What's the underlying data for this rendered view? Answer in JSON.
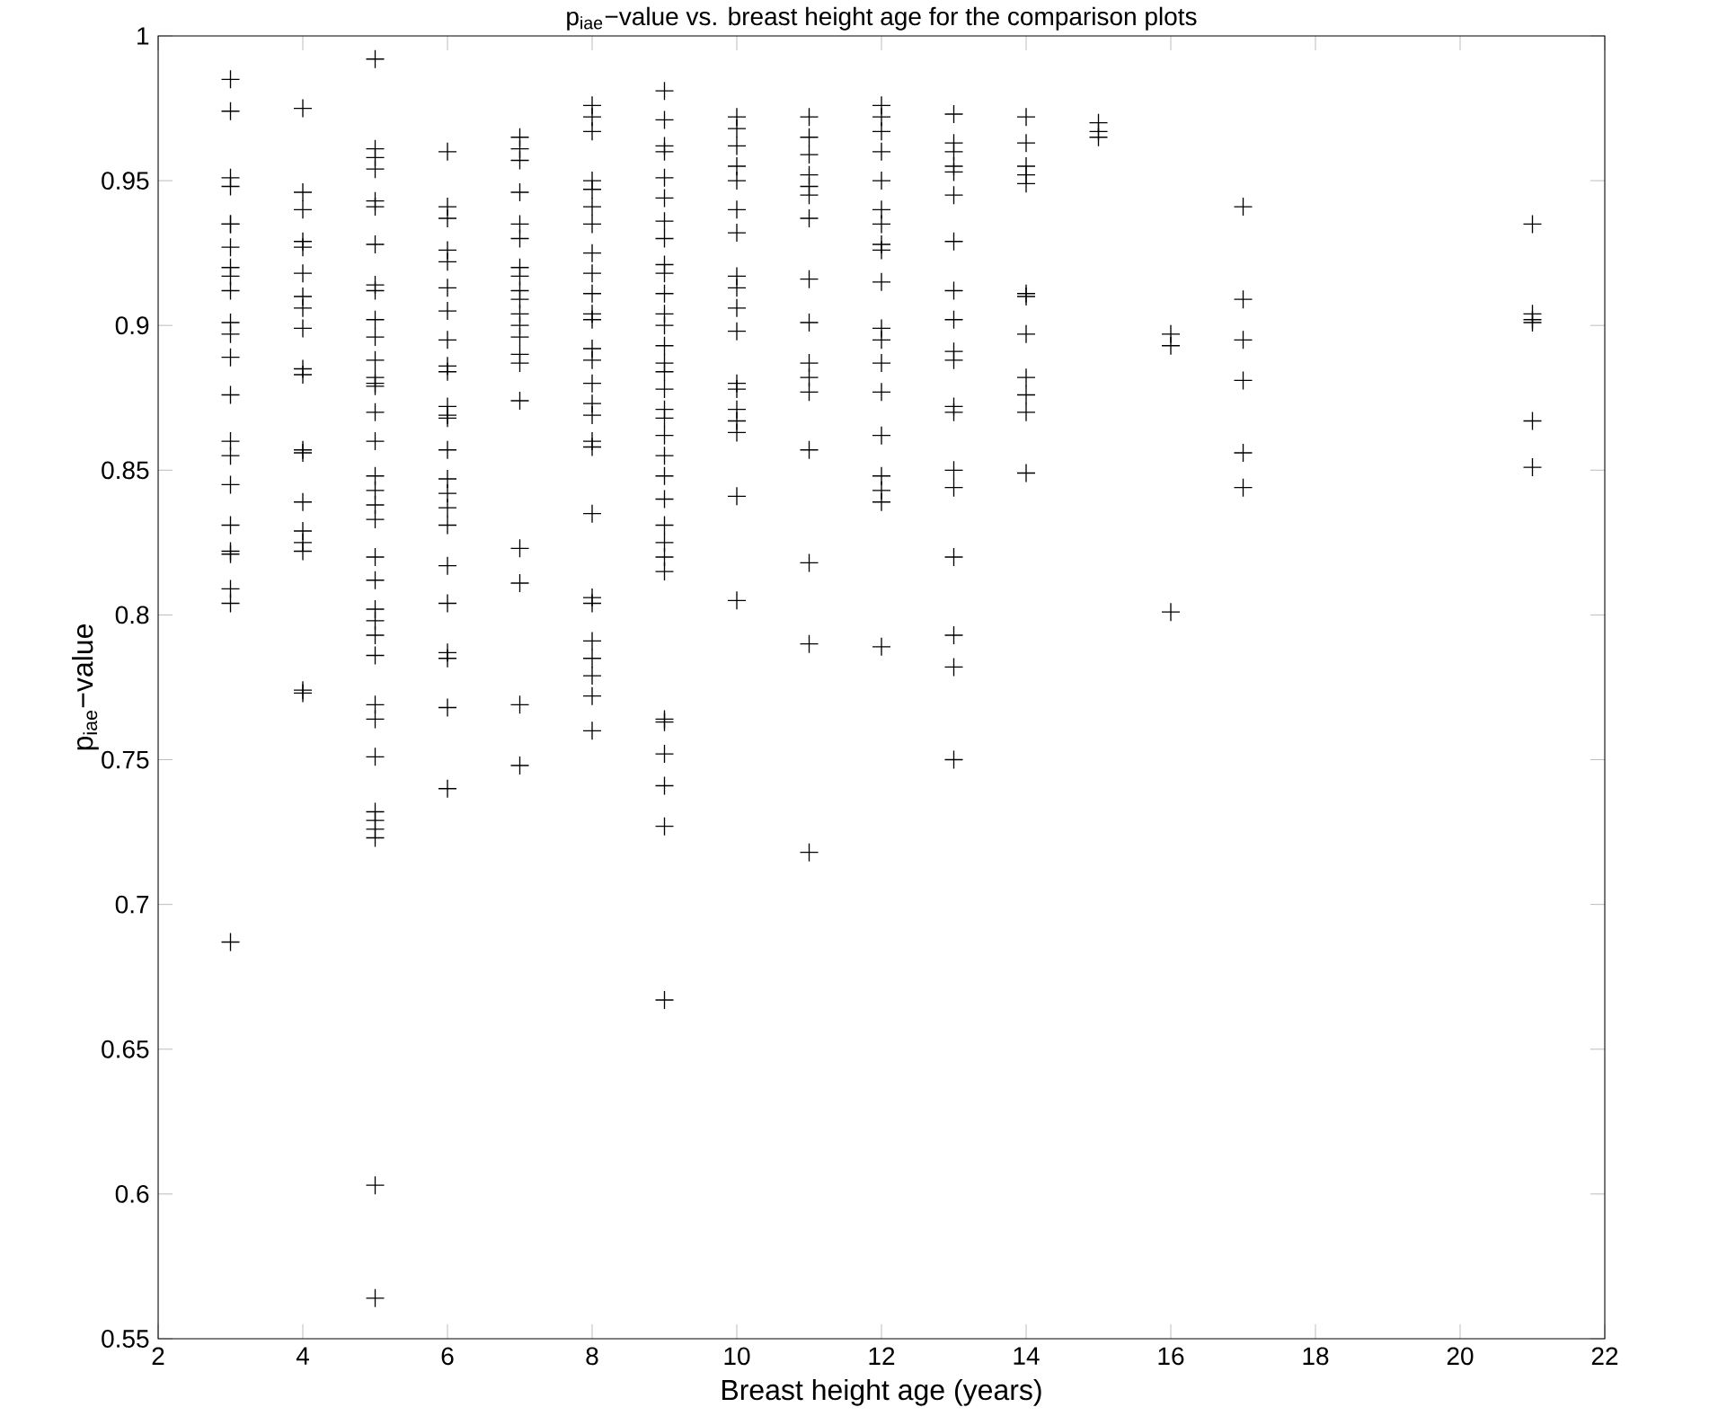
{
  "chart_data": {
    "type": "scatter",
    "title": "p$_{iae}$−value vs. breast height age for the comparison plots",
    "xlabel": "Breast height age (years)",
    "ylabel": "p$_{iae}$−value",
    "xlim": [
      2,
      22
    ],
    "ylim": [
      0.55,
      1
    ],
    "xticks": [
      2,
      4,
      6,
      8,
      10,
      12,
      14,
      16,
      18,
      20,
      22
    ],
    "yticks": [
      0.55,
      0.6,
      0.65,
      0.7,
      0.75,
      0.8,
      0.85,
      0.9,
      0.95,
      1
    ],
    "grid": false,
    "marker": "cross",
    "series": [
      {
        "color": "#000000",
        "x": [
          3,
          3,
          3,
          3,
          3,
          3,
          3,
          3,
          3,
          3,
          3,
          3,
          3,
          3,
          3,
          3,
          3,
          3,
          3,
          3,
          3,
          3,
          3,
          4,
          4,
          4,
          4,
          4,
          4,
          4,
          4,
          4,
          4,
          4,
          4,
          4,
          4,
          4,
          4,
          4,
          4,
          4,
          5,
          5,
          5,
          5,
          5,
          5,
          5,
          5,
          5,
          5,
          5,
          5,
          5,
          5,
          5,
          5,
          5,
          5,
          5,
          5,
          5,
          5,
          5,
          5,
          5,
          5,
          5,
          5,
          5,
          5,
          5,
          5,
          5,
          5,
          5,
          5,
          6,
          6,
          6,
          6,
          6,
          6,
          6,
          6,
          6,
          6,
          6,
          6,
          6,
          6,
          6,
          6,
          6,
          6,
          6,
          6,
          6,
          6,
          6,
          6,
          7,
          7,
          7,
          7,
          7,
          7,
          7,
          7,
          7,
          7,
          7,
          7,
          7,
          7,
          7,
          7,
          7,
          7,
          7,
          7,
          8,
          8,
          8,
          8,
          8,
          8,
          8,
          8,
          8,
          8,
          8,
          8,
          8,
          8,
          8,
          8,
          8,
          8,
          8,
          8,
          8,
          8,
          8,
          8,
          8,
          8,
          8,
          9,
          9,
          9,
          9,
          9,
          9,
          9,
          9,
          9,
          9,
          9,
          9,
          9,
          9,
          9,
          9,
          9,
          9,
          9,
          9,
          9,
          9,
          9,
          9,
          9,
          9,
          9,
          9,
          9,
          9,
          9,
          9,
          9,
          10,
          10,
          10,
          10,
          10,
          10,
          10,
          10,
          10,
          10,
          10,
          10,
          10,
          10,
          10,
          10,
          10,
          10,
          11,
          11,
          11,
          11,
          11,
          11,
          11,
          11,
          11,
          11,
          11,
          11,
          11,
          11,
          11,
          11,
          12,
          12,
          12,
          12,
          12,
          12,
          12,
          12,
          12,
          12,
          12,
          12,
          12,
          12,
          12,
          12,
          12,
          12,
          12,
          13,
          13,
          13,
          13,
          13,
          13,
          13,
          13,
          13,
          13,
          13,
          13,
          13,
          13,
          13,
          13,
          13,
          13,
          13,
          14,
          14,
          14,
          14,
          14,
          14,
          14,
          14,
          14,
          14,
          14,
          14,
          15,
          15,
          15,
          16,
          16,
          16,
          17,
          17,
          17,
          17,
          17,
          17,
          21,
          21,
          21,
          21,
          21,
          21
        ],
        "values": [
          0.985,
          0.974,
          0.951,
          0.948,
          0.935,
          0.935,
          0.927,
          0.92,
          0.917,
          0.912,
          0.901,
          0.897,
          0.889,
          0.876,
          0.86,
          0.855,
          0.845,
          0.831,
          0.822,
          0.821,
          0.809,
          0.804,
          0.687,
          0.975,
          0.946,
          0.94,
          0.929,
          0.927,
          0.918,
          0.91,
          0.906,
          0.899,
          0.885,
          0.883,
          0.857,
          0.856,
          0.839,
          0.829,
          0.825,
          0.822,
          0.774,
          0.773,
          0.992,
          0.961,
          0.958,
          0.954,
          0.943,
          0.941,
          0.928,
          0.914,
          0.912,
          0.902,
          0.896,
          0.888,
          0.882,
          0.88,
          0.879,
          0.87,
          0.86,
          0.848,
          0.843,
          0.838,
          0.833,
          0.82,
          0.812,
          0.802,
          0.798,
          0.793,
          0.786,
          0.769,
          0.764,
          0.751,
          0.732,
          0.729,
          0.726,
          0.723,
          0.603,
          0.564,
          0.96,
          0.941,
          0.937,
          0.926,
          0.922,
          0.913,
          0.905,
          0.895,
          0.886,
          0.884,
          0.872,
          0.869,
          0.868,
          0.857,
          0.847,
          0.842,
          0.837,
          0.831,
          0.817,
          0.804,
          0.787,
          0.785,
          0.768,
          0.74,
          0.965,
          0.961,
          0.957,
          0.946,
          0.935,
          0.93,
          0.92,
          0.917,
          0.912,
          0.909,
          0.904,
          0.9,
          0.896,
          0.89,
          0.887,
          0.874,
          0.823,
          0.811,
          0.769,
          0.748,
          0.976,
          0.972,
          0.967,
          0.95,
          0.947,
          0.941,
          0.935,
          0.925,
          0.918,
          0.911,
          0.904,
          0.902,
          0.892,
          0.888,
          0.88,
          0.873,
          0.869,
          0.86,
          0.858,
          0.835,
          0.806,
          0.804,
          0.791,
          0.785,
          0.779,
          0.772,
          0.76,
          0.981,
          0.971,
          0.962,
          0.96,
          0.951,
          0.944,
          0.936,
          0.93,
          0.921,
          0.918,
          0.911,
          0.904,
          0.9,
          0.893,
          0.887,
          0.884,
          0.878,
          0.871,
          0.868,
          0.862,
          0.855,
          0.848,
          0.84,
          0.831,
          0.825,
          0.82,
          0.815,
          0.764,
          0.763,
          0.752,
          0.741,
          0.727,
          0.667,
          0.972,
          0.968,
          0.962,
          0.955,
          0.95,
          0.94,
          0.932,
          0.917,
          0.913,
          0.906,
          0.898,
          0.88,
          0.878,
          0.871,
          0.867,
          0.863,
          0.841,
          0.805,
          0.972,
          0.965,
          0.959,
          0.952,
          0.948,
          0.945,
          0.937,
          0.916,
          0.901,
          0.887,
          0.882,
          0.877,
          0.857,
          0.818,
          0.79,
          0.718,
          0.976,
          0.972,
          0.967,
          0.96,
          0.95,
          0.94,
          0.935,
          0.928,
          0.926,
          0.915,
          0.899,
          0.895,
          0.887,
          0.877,
          0.862,
          0.848,
          0.843,
          0.839,
          0.789,
          0.973,
          0.963,
          0.96,
          0.955,
          0.953,
          0.945,
          0.929,
          0.912,
          0.902,
          0.891,
          0.888,
          0.872,
          0.87,
          0.85,
          0.844,
          0.82,
          0.793,
          0.782,
          0.75,
          0.972,
          0.963,
          0.955,
          0.952,
          0.949,
          0.911,
          0.91,
          0.897,
          0.882,
          0.876,
          0.87,
          0.849,
          0.97,
          0.967,
          0.965,
          0.897,
          0.893,
          0.801,
          0.941,
          0.909,
          0.895,
          0.881,
          0.856,
          0.844,
          0.935,
          0.904,
          0.902,
          0.901,
          0.867,
          0.851
        ]
      }
    ]
  }
}
